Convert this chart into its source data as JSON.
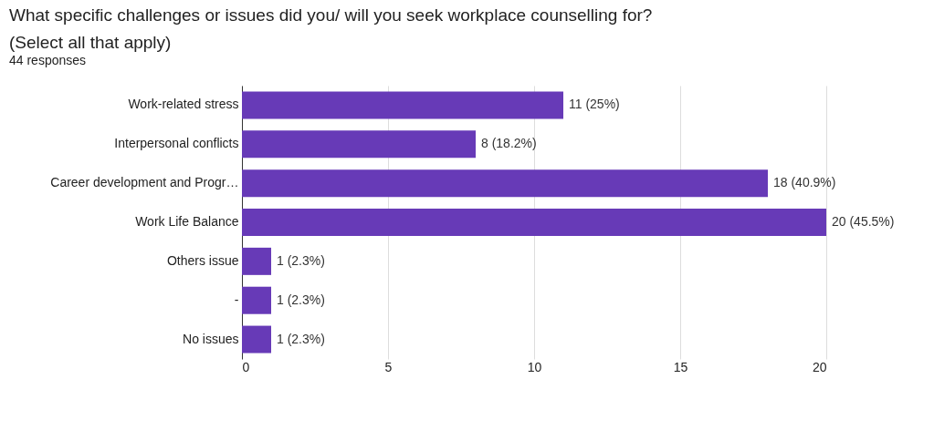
{
  "chart_data": {
    "type": "bar",
    "orientation": "horizontal",
    "title": "What specific challenges or issues did you/ will you seek workplace counselling for? (Select all that apply)",
    "subtitle": "44 responses",
    "categories": [
      "Work-related stress",
      "Interpersonal conflicts",
      "Career development and Progr…",
      "Work Life Balance",
      "Others issue",
      "-",
      "No issues"
    ],
    "values": [
      11,
      8,
      18,
      20,
      1,
      1,
      1
    ],
    "value_labels": [
      "11 (25%)",
      "8 (18.2%)",
      "18 (40.9%)",
      "20 (45.5%)",
      "1 (2.3%)",
      "1 (2.3%)",
      "1 (2.3%)"
    ],
    "color": "#673ab7",
    "xlim": [
      0,
      20
    ],
    "xticks": [
      0,
      5,
      10,
      15,
      20
    ],
    "grid": "x"
  }
}
